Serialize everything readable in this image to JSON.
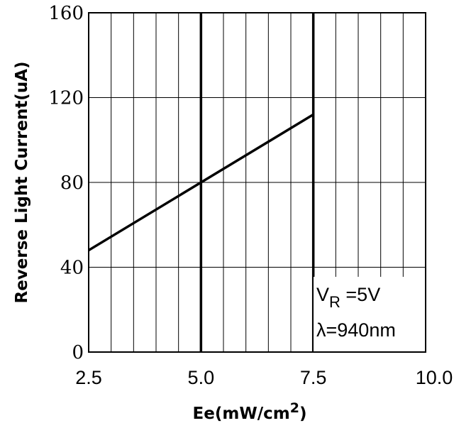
{
  "chart_data": {
    "type": "line",
    "xlabel": "Ee(mW/cm",
    "xlabel_sup": "2",
    "xlabel_close": ")",
    "ylabel": "Reverse Light Current(uA)",
    "xlim": [
      2.5,
      10.0
    ],
    "ylim": [
      0,
      160
    ],
    "x_ticks": [
      2.5,
      5.0,
      7.5,
      10.0
    ],
    "x_tick_labels": [
      "2.5",
      "5.0",
      "7.5",
      "10.0"
    ],
    "y_ticks": [
      0,
      40,
      80,
      120,
      160
    ],
    "y_tick_labels": [
      "0",
      "40",
      "80",
      "120",
      "160"
    ],
    "emphasized_x_gridlines": [
      5.0,
      7.5
    ],
    "grid": true,
    "series": [
      {
        "x": [
          2.5,
          5.0,
          7.5
        ],
        "y": [
          48,
          80,
          112
        ]
      }
    ],
    "annotation": {
      "vr_main": "V",
      "vr_sub": "R",
      "vr_value": " =5V",
      "wavelength": "λ=940nm"
    }
  }
}
